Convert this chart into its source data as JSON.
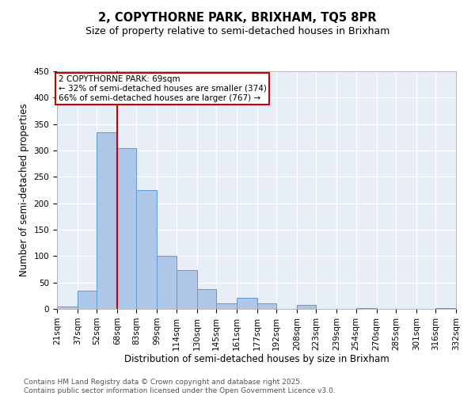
{
  "title_line1": "2, COPYTHORNE PARK, BRIXHAM, TQ5 8PR",
  "title_line2": "Size of property relative to semi-detached houses in Brixham",
  "xlabel": "Distribution of semi-detached houses by size in Brixham",
  "ylabel": "Number of semi-detached properties",
  "footnote_line1": "Contains HM Land Registry data © Crown copyright and database right 2025.",
  "footnote_line2": "Contains public sector information licensed under the Open Government Licence v3.0.",
  "annotation_line1": "2 COPYTHORNE PARK: 69sqm",
  "annotation_line2": "← 32% of semi-detached houses are smaller (374)",
  "annotation_line3": "66% of semi-detached houses are larger (767) →",
  "bin_edges": [
    21,
    37,
    52,
    68,
    83,
    99,
    114,
    130,
    145,
    161,
    177,
    192,
    208,
    223,
    239,
    254,
    270,
    285,
    301,
    316,
    332
  ],
  "bin_labels": [
    "21sqm",
    "37sqm",
    "52sqm",
    "68sqm",
    "83sqm",
    "99sqm",
    "114sqm",
    "130sqm",
    "145sqm",
    "161sqm",
    "177sqm",
    "192sqm",
    "208sqm",
    "223sqm",
    "239sqm",
    "254sqm",
    "270sqm",
    "285sqm",
    "301sqm",
    "316sqm",
    "332sqm"
  ],
  "counts": [
    5,
    35,
    335,
    305,
    225,
    100,
    73,
    38,
    10,
    21,
    10,
    0,
    7,
    0,
    0,
    2,
    0,
    0,
    0,
    2
  ],
  "bar_color": "#aec6e8",
  "bar_edge_color": "#5b9bd5",
  "vline_color": "#cc0000",
  "vline_x": 68,
  "annotation_box_color": "#cc0000",
  "plot_bg_color": "#e8eef8",
  "fig_bg_color": "#ffffff",
  "ylim": [
    0,
    450
  ],
  "yticks": [
    0,
    50,
    100,
    150,
    200,
    250,
    300,
    350,
    400,
    450
  ],
  "grid_color": "#ffffff",
  "title_fontsize": 10.5,
  "subtitle_fontsize": 9,
  "axis_label_fontsize": 8.5,
  "tick_fontsize": 7.5,
  "annotation_fontsize": 7.5,
  "footnote_fontsize": 6.5
}
